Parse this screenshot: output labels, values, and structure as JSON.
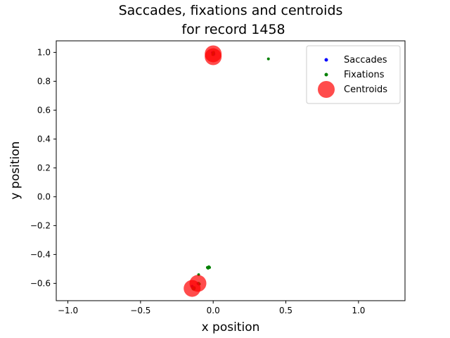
{
  "chart_data": {
    "type": "scatter",
    "title_lines": [
      "Saccades, fixations and centroids",
      "for record 1458"
    ],
    "xlabel": "x position",
    "ylabel": "y position",
    "xlim": [
      -1.08,
      1.32
    ],
    "ylim": [
      -0.72,
      1.08
    ],
    "xticks": [
      -1.0,
      -0.5,
      0.0,
      0.5,
      1.0
    ],
    "xtick_labels": [
      "−1.0",
      "−0.5",
      "0.0",
      "0.5",
      "1.0"
    ],
    "yticks": [
      -0.6,
      -0.4,
      -0.2,
      0.0,
      0.2,
      0.4,
      0.6,
      0.8,
      1.0
    ],
    "ytick_labels": [
      "−0.6",
      "−0.4",
      "−0.2",
      "0.0",
      "0.2",
      "0.4",
      "0.6",
      "0.8",
      "1.0"
    ],
    "grid": false,
    "legend_position": "top-right",
    "series": [
      {
        "name": "Saccades",
        "kind": "saccade",
        "color": "#0000ff",
        "points": [
          [
            0.0,
            0.995
          ],
          [
            0.005,
            0.99
          ],
          [
            -0.005,
            0.998
          ],
          [
            0.002,
            0.985
          ],
          [
            -0.14,
            -0.63
          ],
          [
            -0.13,
            -0.635
          ],
          [
            -0.145,
            -0.62
          ],
          [
            -0.105,
            -0.6
          ],
          [
            -0.1,
            -0.605
          ]
        ]
      },
      {
        "name": "Fixations",
        "kind": "fixation",
        "color": "#008000",
        "points": [
          [
            0.38,
            0.955
          ],
          [
            0.0,
            0.995
          ],
          [
            0.003,
            1.0
          ],
          [
            -0.003,
            0.985
          ],
          [
            -0.04,
            -0.49
          ],
          [
            -0.03,
            -0.485
          ],
          [
            -0.025,
            -0.49
          ],
          [
            -0.035,
            -0.495
          ],
          [
            -0.1,
            -0.54
          ],
          [
            -0.14,
            -0.635
          ],
          [
            -0.13,
            -0.63
          ],
          [
            -0.135,
            -0.64
          ],
          [
            -0.1,
            -0.6
          ],
          [
            -0.095,
            -0.605
          ]
        ]
      },
      {
        "name": "Centroids",
        "kind": "centroid",
        "color": "#ff0000",
        "points": [
          [
            0.0,
            0.99
          ],
          [
            0.0,
            0.97
          ],
          [
            -0.105,
            -0.6
          ],
          [
            -0.145,
            -0.635
          ]
        ]
      }
    ]
  }
}
